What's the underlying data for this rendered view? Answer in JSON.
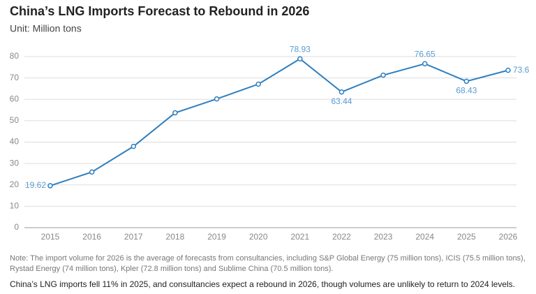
{
  "chart_data": {
    "type": "line",
    "title": "China’s LNG Imports Forecast to Rebound in 2026",
    "subtitle": "Unit: Million tons",
    "categories": [
      "2015",
      "2016",
      "2017",
      "2018",
      "2019",
      "2020",
      "2021",
      "2022",
      "2023",
      "2024",
      "2025",
      "2026"
    ],
    "series": [
      {
        "name": "LNG imports",
        "color": "#2f7fbf",
        "values": [
          19.62,
          26,
          38,
          53.7,
          60.2,
          67.1,
          78.93,
          63.44,
          71.3,
          76.65,
          68.43,
          73.6
        ],
        "value_labels": [
          "19.62",
          null,
          null,
          null,
          null,
          null,
          "78.93",
          "63.44",
          null,
          "76.65",
          "68.43",
          "73.6"
        ]
      }
    ],
    "ylim": [
      0,
      80
    ],
    "yticks": [
      0,
      10,
      20,
      30,
      40,
      50,
      60,
      70,
      80
    ],
    "grid": true,
    "note": "Note: The import volume for 2026 is the average of forecasts from consultancies, including S&P Global Energy (75 million tons), ICIS (75.5 million tons), Rystad Energy (74 million tons), Kpler (72.8 million tons) and Sublime China (70.5 million tons).",
    "caption": "China’s LNG imports fell 11% in 2025, and consultancies expect a rebound in 2026, though volumes are unlikely to return to 2024 levels."
  }
}
